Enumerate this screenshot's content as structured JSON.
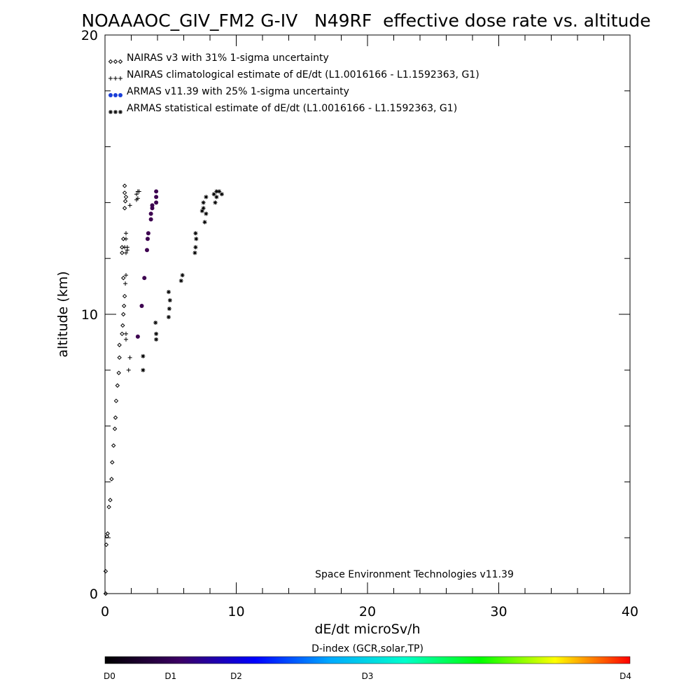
{
  "chart_data": {
    "type": "scatter",
    "title": "NOAAAOC_GIV_FM2 G-IV   N49RF  effective dose rate vs. altitude",
    "xlabel": "dE/dt microSv/h",
    "ylabel": "altitude (km)",
    "xlim": [
      0,
      40
    ],
    "ylim": [
      0,
      20
    ],
    "x_ticks": [
      "0",
      "10",
      "20",
      "30",
      "40"
    ],
    "y_ticks": [
      "0",
      "10",
      "20"
    ],
    "grid": false,
    "legend_position": "top-left",
    "footer": "Space Environment Technologies v11.39",
    "legend": [
      {
        "marker": "diamond",
        "label": "NAIRAS v3 with 31% 1-sigma uncertainty"
      },
      {
        "marker": "plus",
        "label": "NAIRAS climatological estimate of dE/dt (L1.0016166 - L1.1592363, G1)"
      },
      {
        "marker": "dot",
        "label": "ARMAS v11.39 with 25% 1-sigma uncertainty"
      },
      {
        "marker": "asterisk",
        "label": "ARMAS statistical estimate of dE/dt (L1.0016166 - L1.1592363, G1)"
      }
    ],
    "series": [
      {
        "name": "NAIRAS v3 with 31% 1-sigma uncertainty",
        "marker": "diamond",
        "color": "#000000",
        "points": [
          [
            0.05,
            0.0
          ],
          [
            0.05,
            0.8
          ],
          [
            0.1,
            1.75
          ],
          [
            0.15,
            2.05
          ],
          [
            0.2,
            2.15
          ],
          [
            0.3,
            3.1
          ],
          [
            0.4,
            3.35
          ],
          [
            0.5,
            4.1
          ],
          [
            0.55,
            4.7
          ],
          [
            0.65,
            5.3
          ],
          [
            0.75,
            5.9
          ],
          [
            0.8,
            6.3
          ],
          [
            0.85,
            6.9
          ],
          [
            0.95,
            7.45
          ],
          [
            1.05,
            7.9
          ],
          [
            1.1,
            8.45
          ],
          [
            1.1,
            8.9
          ],
          [
            1.3,
            9.3
          ],
          [
            1.35,
            9.6
          ],
          [
            1.4,
            10.0
          ],
          [
            1.45,
            10.3
          ],
          [
            1.5,
            10.65
          ],
          [
            1.4,
            11.3
          ],
          [
            1.3,
            12.2
          ],
          [
            1.3,
            12.4
          ],
          [
            1.4,
            12.7
          ],
          [
            1.5,
            13.8
          ],
          [
            1.55,
            14.05
          ],
          [
            1.6,
            14.2
          ],
          [
            1.5,
            14.35
          ],
          [
            1.5,
            14.6
          ]
        ]
      },
      {
        "name": "NAIRAS climatological estimate of dE/dt (L1.0016166 - L1.1592363, G1)",
        "marker": "plus",
        "color": "#000000",
        "points": [
          [
            1.8,
            8.0
          ],
          [
            1.9,
            8.45
          ],
          [
            1.6,
            9.1
          ],
          [
            1.6,
            9.3
          ],
          [
            1.55,
            11.1
          ],
          [
            1.6,
            11.4
          ],
          [
            1.6,
            12.2
          ],
          [
            1.7,
            12.3
          ],
          [
            1.5,
            12.4
          ],
          [
            1.7,
            12.4
          ],
          [
            1.6,
            12.7
          ],
          [
            1.6,
            12.9
          ],
          [
            1.9,
            13.9
          ],
          [
            2.4,
            14.1
          ],
          [
            2.5,
            14.15
          ],
          [
            2.4,
            14.3
          ],
          [
            2.5,
            14.4
          ],
          [
            2.6,
            14.4
          ]
        ]
      },
      {
        "name": "ARMAS v11.39 with 25% 1-sigma uncertainty",
        "marker": "dot",
        "color": "#3d0050",
        "points": [
          [
            2.5,
            9.2
          ],
          [
            2.8,
            10.3
          ],
          [
            3.0,
            11.3
          ],
          [
            3.2,
            12.3
          ],
          [
            3.25,
            12.7
          ],
          [
            3.3,
            12.9
          ],
          [
            3.5,
            13.4
          ],
          [
            3.5,
            13.6
          ],
          [
            3.6,
            13.8
          ],
          [
            3.6,
            13.9
          ],
          [
            3.9,
            14.0
          ],
          [
            3.9,
            14.2
          ],
          [
            3.9,
            14.4
          ]
        ]
      },
      {
        "name": "ARMAS statistical estimate of dE/dt (L1.0016166 - L1.1592363, G1)",
        "marker": "asterisk",
        "color": "#000000",
        "points": [
          [
            2.9,
            8.0
          ],
          [
            2.9,
            8.5
          ],
          [
            3.9,
            9.1
          ],
          [
            3.9,
            9.3
          ],
          [
            3.85,
            9.7
          ],
          [
            4.85,
            9.9
          ],
          [
            4.9,
            10.2
          ],
          [
            4.95,
            10.5
          ],
          [
            4.85,
            10.8
          ],
          [
            5.8,
            11.2
          ],
          [
            5.9,
            11.4
          ],
          [
            6.85,
            12.2
          ],
          [
            6.9,
            12.4
          ],
          [
            6.95,
            12.7
          ],
          [
            6.9,
            12.9
          ],
          [
            7.6,
            13.3
          ],
          [
            7.7,
            13.6
          ],
          [
            7.4,
            13.7
          ],
          [
            7.5,
            13.8
          ],
          [
            7.5,
            14.0
          ],
          [
            7.7,
            14.2
          ],
          [
            8.4,
            14.0
          ],
          [
            8.5,
            14.2
          ],
          [
            8.3,
            14.3
          ],
          [
            8.7,
            14.4
          ],
          [
            8.5,
            14.4
          ],
          [
            8.9,
            14.3
          ]
        ]
      }
    ],
    "colorbar": {
      "label": "D-index (GCR,solar,TP)",
      "ticks": [
        {
          "label": "D0",
          "value": 0
        },
        {
          "label": "D1",
          "value": 0.125
        },
        {
          "label": "D2",
          "value": 0.25
        },
        {
          "label": "D3",
          "value": 0.5
        },
        {
          "label": "D4",
          "value": 1.0
        }
      ],
      "colors": [
        "#000000",
        "#3c0064",
        "#0000ff",
        "#00aaff",
        "#00ffcc",
        "#00ff00",
        "#ffff00",
        "#ff0000"
      ]
    }
  }
}
